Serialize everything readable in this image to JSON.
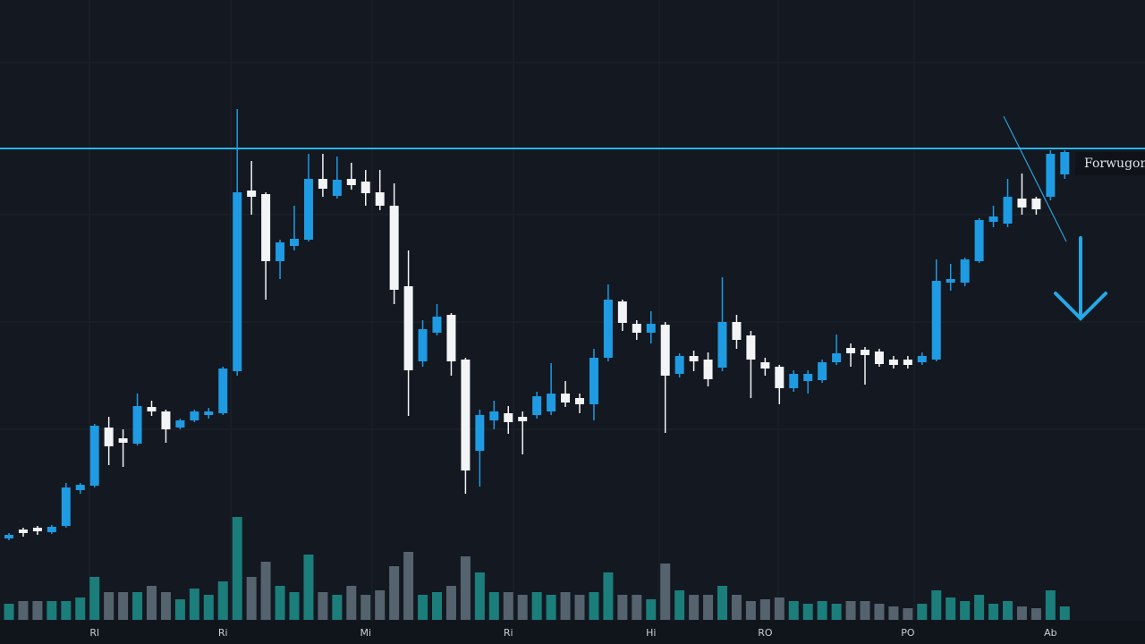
{
  "chart_data": {
    "type": "candlestick",
    "categories": [
      null,
      null,
      null,
      null,
      null,
      null,
      "Rl",
      null,
      null,
      null,
      null,
      null,
      null,
      null,
      null,
      "Ri",
      null,
      null,
      null,
      null,
      null,
      null,
      null,
      null,
      null,
      "Mi",
      null,
      null,
      null,
      null,
      null,
      null,
      null,
      null,
      null,
      "Ri",
      null,
      null,
      null,
      null,
      null,
      null,
      null,
      null,
      null,
      "Hi",
      null,
      null,
      null,
      null,
      null,
      null,
      null,
      "RO",
      null,
      null,
      null,
      null,
      null,
      null,
      null,
      null,
      null,
      "PO",
      null,
      null,
      null,
      null,
      null,
      null,
      null,
      null,
      null,
      "Ab",
      null
    ],
    "open": [
      118,
      128,
      130,
      125,
      132,
      172,
      177,
      242,
      230,
      224,
      265,
      260,
      242,
      250,
      256,
      258,
      305,
      507,
      503,
      428,
      445,
      452,
      520,
      501,
      520,
      517,
      505,
      490,
      400,
      316,
      348,
      368,
      318,
      216,
      250,
      258,
      254,
      256,
      260,
      280,
      275,
      268,
      320,
      383,
      358,
      348,
      357,
      302,
      322,
      318,
      309,
      360,
      345,
      315,
      310,
      286,
      294,
      295,
      315,
      331,
      329,
      327,
      318,
      318,
      315,
      318,
      404,
      404,
      428,
      472,
      470,
      498,
      498,
      500,
      525
    ],
    "close": [
      122,
      124,
      126,
      131,
      175,
      178,
      244,
      221,
      225,
      266,
      260,
      240,
      250,
      260,
      260,
      308,
      505,
      500,
      428,
      449,
      453,
      520,
      509,
      519,
      513,
      504,
      490,
      396,
      306,
      352,
      366,
      316,
      194,
      256,
      260,
      248,
      249,
      277,
      280,
      270,
      268,
      320,
      385,
      359,
      348,
      358,
      300,
      322,
      316,
      296,
      360,
      340,
      318,
      308,
      286,
      302,
      302,
      315,
      325,
      325,
      323,
      313,
      312,
      312,
      322,
      406,
      408,
      430,
      474,
      478,
      500,
      488,
      486,
      548,
      550
    ],
    "high": [
      124,
      130,
      132,
      133,
      180,
      180,
      246,
      254,
      240,
      280,
      272,
      262,
      252,
      262,
      264,
      310,
      598,
      540,
      505,
      452,
      490,
      548,
      548,
      545,
      538,
      530,
      530,
      515,
      440,
      362,
      380,
      370,
      320,
      262,
      272,
      266,
      260,
      282,
      314,
      294,
      280,
      330,
      402,
      385,
      362,
      372,
      360,
      325,
      328,
      326,
      410,
      368,
      350,
      320,
      312,
      306,
      306,
      318,
      346,
      336,
      332,
      330,
      322,
      322,
      326,
      430,
      425,
      432,
      476,
      490,
      520,
      526,
      500,
      552,
      552
    ],
    "low": [
      116,
      120,
      122,
      123,
      130,
      168,
      175,
      200,
      198,
      222,
      255,
      225,
      240,
      248,
      252,
      256,
      300,
      480,
      385,
      408,
      440,
      450,
      500,
      498,
      508,
      490,
      485,
      380,
      255,
      310,
      345,
      300,
      168,
      176,
      240,
      235,
      212,
      252,
      256,
      265,
      258,
      250,
      316,
      350,
      340,
      336,
      236,
      298,
      305,
      288,
      305,
      330,
      275,
      300,
      268,
      282,
      280,
      292,
      312,
      310,
      290,
      310,
      308,
      308,
      312,
      316,
      395,
      400,
      426,
      466,
      466,
      480,
      480,
      496,
      520
    ],
    "volume": [
      18,
      21,
      21,
      21,
      21,
      25,
      48,
      31,
      31,
      31,
      38,
      31,
      23,
      35,
      28,
      43,
      115,
      48,
      65,
      38,
      31,
      73,
      31,
      28,
      38,
      28,
      33,
      60,
      76,
      28,
      31,
      38,
      71,
      53,
      31,
      31,
      28,
      31,
      28,
      31,
      28,
      31,
      53,
      28,
      28,
      23,
      63,
      33,
      28,
      28,
      38,
      28,
      21,
      23,
      25,
      21,
      18,
      21,
      18,
      21,
      21,
      18,
      15,
      13,
      18,
      33,
      25,
      21,
      28,
      18,
      21,
      15,
      13,
      33,
      15
    ],
    "up_color": "#1e9be2",
    "down_color": "#f2f4f6",
    "volume_up_color": "#1d8a85",
    "volume_down_color": "#5d6b78",
    "ylim": [
      0,
      720
    ],
    "resistance": 554,
    "resistance_label": "Forwugon",
    "resistance_color": "#2bb3e8"
  }
}
